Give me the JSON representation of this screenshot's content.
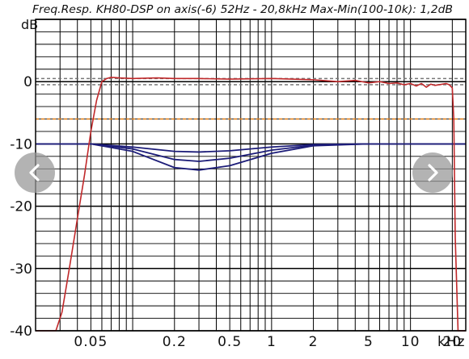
{
  "chart_data": {
    "type": "line",
    "title": "Freq.Resp. KH80-DSP on axis(-6) 52Hz - 20,8kHz  Max-Min(100-10k): 1,2dB",
    "ylabel": "dB",
    "xlabel": "kHz",
    "x_scale": "log",
    "xlim": [
      0.02,
      25
    ],
    "ylim": [
      -40,
      10
    ],
    "grid": true,
    "y_ticks": [
      {
        "value": 0,
        "label": "0"
      },
      {
        "value": -10,
        "label": "-10"
      },
      {
        "value": -20,
        "label": "-20"
      },
      {
        "value": -30,
        "label": "-30"
      },
      {
        "value": -40,
        "label": "-40"
      }
    ],
    "x_ticks": [
      {
        "value": 0.05,
        "label": "0.05"
      },
      {
        "value": 0.2,
        "label": "0.2"
      },
      {
        "value": 0.5,
        "label": "0.5"
      },
      {
        "value": 1,
        "label": "1"
      },
      {
        "value": 2,
        "label": "2"
      },
      {
        "value": 5,
        "label": "5"
      },
      {
        "value": 10,
        "label": "10"
      },
      {
        "value": 20,
        "label": "20"
      }
    ],
    "reference_lines": [
      {
        "y": 0.5,
        "style": "dashed",
        "color": "#777777"
      },
      {
        "y": -0.5,
        "style": "dashed",
        "color": "#777777"
      },
      {
        "y": -6,
        "style": "dashed",
        "color": "#e07a10"
      }
    ],
    "series": [
      {
        "color": "#c0282a",
        "x": [
          0.02,
          0.028,
          0.031,
          0.035,
          0.04,
          0.045,
          0.05,
          0.055,
          0.06,
          0.065,
          0.07,
          0.08,
          0.1,
          0.15,
          0.2,
          0.3,
          0.5,
          1,
          2,
          3,
          4,
          5,
          6,
          7,
          8,
          9,
          10,
          11,
          12,
          13,
          14,
          15,
          16,
          17,
          18,
          19,
          20,
          20.5,
          21,
          22,
          23,
          25
        ],
        "y": [
          -40,
          -40,
          -37,
          -30,
          -22,
          -15,
          -8,
          -3,
          0,
          0.5,
          0.7,
          0.6,
          0.5,
          0.6,
          0.5,
          0.5,
          0.4,
          0.5,
          0.3,
          0,
          0.2,
          -0.2,
          0,
          -0.3,
          -0.2,
          -0.5,
          -0.3,
          -0.7,
          -0.3,
          -0.9,
          -0.4,
          -0.6,
          -0.5,
          -0.4,
          -0.3,
          -0.5,
          -1,
          -6,
          -25,
          -40,
          -40,
          -40
        ]
      },
      {
        "color": "#1c1c78",
        "x": [
          0.02,
          0.05,
          0.1,
          0.2,
          0.3,
          0.5,
          1,
          2,
          5,
          10,
          25
        ],
        "y": [
          -10,
          -10,
          -10.5,
          -11.2,
          -11.3,
          -11.1,
          -10.5,
          -10.1,
          -10,
          -10,
          -10
        ]
      },
      {
        "color": "#1c1c78",
        "x": [
          0.02,
          0.05,
          0.1,
          0.2,
          0.3,
          0.5,
          1,
          2,
          5,
          10,
          25
        ],
        "y": [
          -10,
          -10,
          -10.8,
          -12.5,
          -12.8,
          -12.3,
          -11,
          -10.2,
          -10,
          -10,
          -10
        ]
      },
      {
        "color": "#1c1c78",
        "x": [
          0.02,
          0.05,
          0.1,
          0.2,
          0.3,
          0.5,
          1,
          2,
          5,
          10,
          25
        ],
        "y": [
          -10,
          -10,
          -11.2,
          -13.8,
          -14.2,
          -13.5,
          -11.5,
          -10.3,
          -10,
          -10,
          -10
        ]
      }
    ]
  },
  "navigation": {
    "prev_icon": "chevron-left-icon",
    "next_icon": "chevron-right-icon"
  }
}
